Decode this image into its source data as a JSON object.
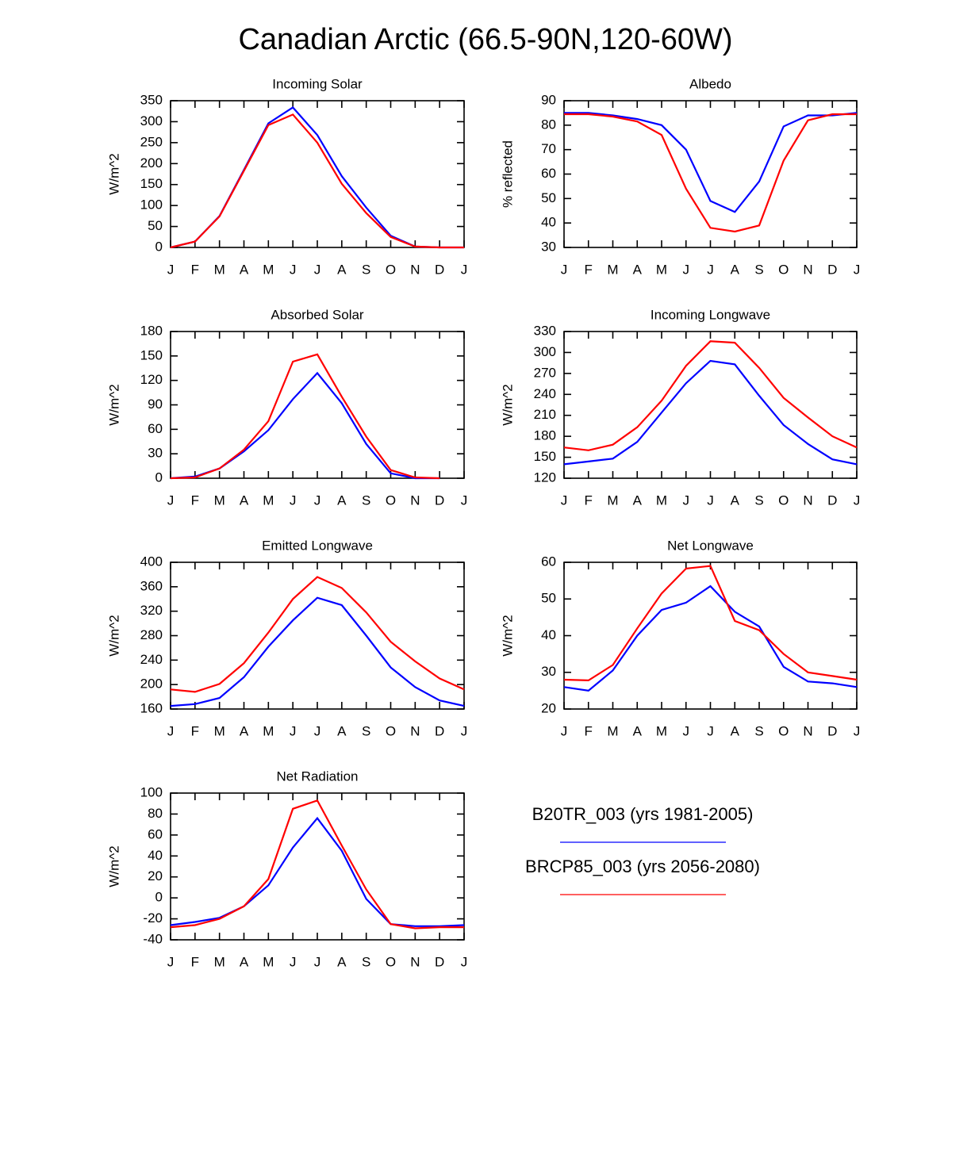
{
  "title": "Canadian Arctic (66.5-90N,120-60W)",
  "legend": [
    {
      "name": "B20TR_003 (yrs 1981-2005)",
      "color": "#0000ff"
    },
    {
      "name": "BRCP85_003 (yrs 2056-2080)",
      "color": "#ff0000"
    }
  ],
  "chart_data": [
    {
      "type": "line",
      "title": "Incoming Solar",
      "y_label": "W/m^2",
      "categories": [
        "J",
        "F",
        "M",
        "A",
        "M",
        "J",
        "J",
        "A",
        "S",
        "O",
        "N",
        "D",
        "J"
      ],
      "ylim": [
        0,
        350
      ],
      "yticks": [
        0,
        50,
        100,
        150,
        200,
        250,
        300,
        350
      ],
      "series": [
        {
          "values": [
            0,
            14,
            75,
            185,
            296,
            334,
            268,
            170,
            95,
            28,
            2,
            0,
            0
          ]
        },
        {
          "values": [
            0,
            14,
            74,
            183,
            292,
            317,
            250,
            152,
            82,
            25,
            2,
            0,
            0
          ]
        }
      ]
    },
    {
      "type": "line",
      "title": "Albedo",
      "y_label": "% reflected",
      "categories": [
        "J",
        "F",
        "M",
        "A",
        "M",
        "J",
        "J",
        "A",
        "S",
        "O",
        "N",
        "D",
        "J"
      ],
      "ylim": [
        30,
        90
      ],
      "yticks": [
        30,
        40,
        50,
        60,
        70,
        80,
        90
      ],
      "series": [
        {
          "values": [
            85,
            85,
            84,
            82.5,
            80,
            70,
            49,
            44.5,
            57,
            79.5,
            84,
            84,
            85
          ]
        },
        {
          "values": [
            84.5,
            84.5,
            83.5,
            81.5,
            76,
            54,
            38,
            36.5,
            39,
            65.5,
            82,
            84.5,
            84.5
          ]
        }
      ]
    },
    {
      "type": "line",
      "title": "Absorbed Solar",
      "y_label": "W/m^2",
      "categories": [
        "J",
        "F",
        "M",
        "A",
        "M",
        "J",
        "J",
        "A",
        "S",
        "O",
        "N",
        "D",
        "J"
      ],
      "ylim": [
        0,
        180
      ],
      "yticks": [
        0,
        30,
        60,
        90,
        120,
        150,
        180
      ],
      "series": [
        {
          "values": [
            0,
            2,
            12,
            33,
            59,
            97,
            129,
            92,
            42,
            6,
            0,
            0,
            null
          ]
        },
        {
          "values": [
            0,
            1,
            12,
            35,
            70,
            143,
            152,
            100,
            51,
            10,
            1,
            0,
            null
          ]
        }
      ]
    },
    {
      "type": "line",
      "title": "Incoming Longwave",
      "y_label": "W/m^2",
      "categories": [
        "J",
        "F",
        "M",
        "A",
        "M",
        "J",
        "J",
        "A",
        "S",
        "O",
        "N",
        "D",
        "J"
      ],
      "ylim": [
        120,
        330
      ],
      "yticks": [
        120,
        150,
        180,
        210,
        240,
        270,
        300,
        330
      ],
      "series": [
        {
          "values": [
            140,
            144,
            148,
            172,
            214,
            256,
            288,
            283,
            238,
            196,
            169,
            147,
            140
          ]
        },
        {
          "values": [
            164,
            160,
            168,
            193,
            231,
            281,
            316,
            314,
            278,
            235,
            207,
            180,
            164
          ]
        }
      ]
    },
    {
      "type": "line",
      "title": "Emitted Longwave",
      "y_label": "W/m^2",
      "categories": [
        "J",
        "F",
        "M",
        "A",
        "M",
        "J",
        "J",
        "A",
        "S",
        "O",
        "N",
        "D",
        "J"
      ],
      "ylim": [
        160,
        400
      ],
      "yticks": [
        160,
        200,
        240,
        280,
        320,
        360,
        400
      ],
      "series": [
        {
          "values": [
            165,
            168,
            178,
            212,
            262,
            305,
            342,
            330,
            280,
            228,
            196,
            174,
            165
          ]
        },
        {
          "values": [
            192,
            188,
            201,
            235,
            285,
            340,
            376,
            358,
            318,
            270,
            238,
            210,
            192
          ]
        }
      ]
    },
    {
      "type": "line",
      "title": "Net Longwave",
      "y_label": "W/m^2",
      "categories": [
        "J",
        "F",
        "M",
        "A",
        "M",
        "J",
        "J",
        "A",
        "S",
        "O",
        "N",
        "D",
        "J"
      ],
      "ylim": [
        20,
        60
      ],
      "yticks": [
        20,
        30,
        40,
        50,
        60
      ],
      "series": [
        {
          "values": [
            26,
            25,
            30.5,
            40,
            47,
            49,
            53.5,
            46.5,
            42.5,
            31.5,
            27.5,
            27,
            26
          ]
        },
        {
          "values": [
            28,
            27.8,
            32,
            42,
            51.5,
            58.3,
            59,
            44,
            41.5,
            35,
            30,
            29,
            28
          ]
        }
      ]
    },
    {
      "type": "line",
      "title": "Net Radiation",
      "y_label": "W/m^2",
      "categories": [
        "J",
        "F",
        "M",
        "A",
        "M",
        "J",
        "J",
        "A",
        "S",
        "O",
        "N",
        "D",
        "J"
      ],
      "ylim": [
        -40,
        100
      ],
      "yticks": [
        -40,
        -20,
        0,
        20,
        40,
        60,
        80,
        100
      ],
      "series": [
        {
          "values": [
            -26,
            -23,
            -19,
            -8,
            12,
            48,
            76,
            45,
            -1,
            -25,
            -27,
            -27,
            -26
          ]
        },
        {
          "values": [
            -28,
            -26,
            -20,
            -8,
            18,
            85,
            93,
            50,
            8,
            -25,
            -29,
            -28,
            -28
          ]
        }
      ]
    }
  ]
}
